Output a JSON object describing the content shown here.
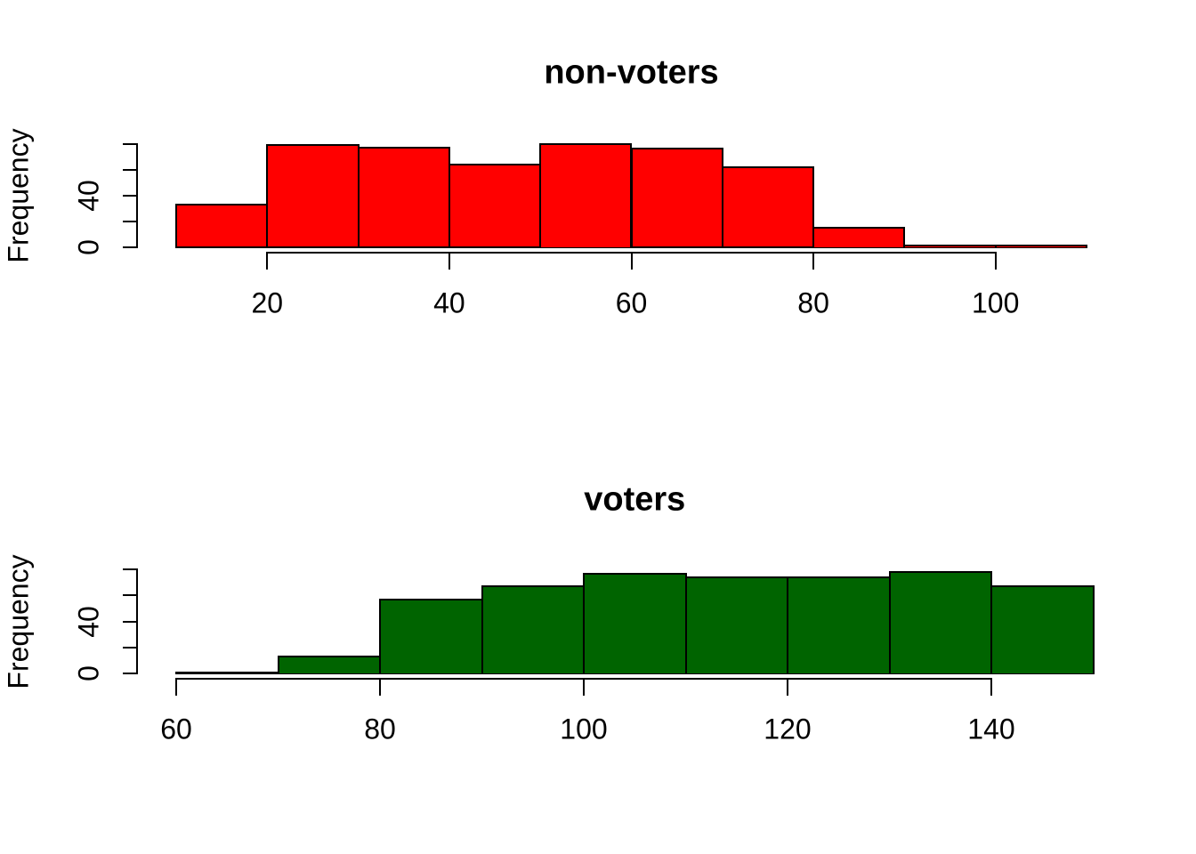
{
  "figure": {
    "background": "#ffffff",
    "axis_color": "#000000",
    "text_color": "#000000"
  },
  "chart_data": [
    {
      "type": "bar",
      "kind": "histogram",
      "title": "non-voters",
      "xlabel": "",
      "ylabel": "Frequency",
      "bar_color": "#ff0000",
      "bar_border_color": "#000000",
      "bin_start": 10,
      "bin_width": 10,
      "counts": [
        33,
        79,
        77,
        64,
        80,
        76,
        62,
        15,
        1,
        1
      ],
      "x_ticks": [
        20,
        40,
        60,
        80,
        100
      ],
      "y_ticks": [
        0,
        20,
        40,
        60,
        80
      ],
      "y_tick_labels_shown": [
        0,
        40
      ],
      "xlim": [
        10,
        110
      ],
      "ylim": [
        0,
        80
      ],
      "grid": "off",
      "legend": "none"
    },
    {
      "type": "bar",
      "kind": "histogram",
      "title": "voters",
      "xlabel": "",
      "ylabel": "Frequency",
      "bar_color": "#006400",
      "bar_border_color": "#000000",
      "bin_start": 60,
      "bin_width": 10,
      "counts": [
        1,
        13,
        57,
        67,
        77,
        74,
        74,
        78,
        67
      ],
      "x_ticks": [
        60,
        80,
        100,
        120,
        140
      ],
      "y_ticks": [
        0,
        20,
        40,
        60,
        80
      ],
      "y_tick_labels_shown": [
        0,
        40
      ],
      "xlim": [
        60,
        150
      ],
      "ylim": [
        0,
        80
      ],
      "grid": "off",
      "legend": "none"
    }
  ]
}
